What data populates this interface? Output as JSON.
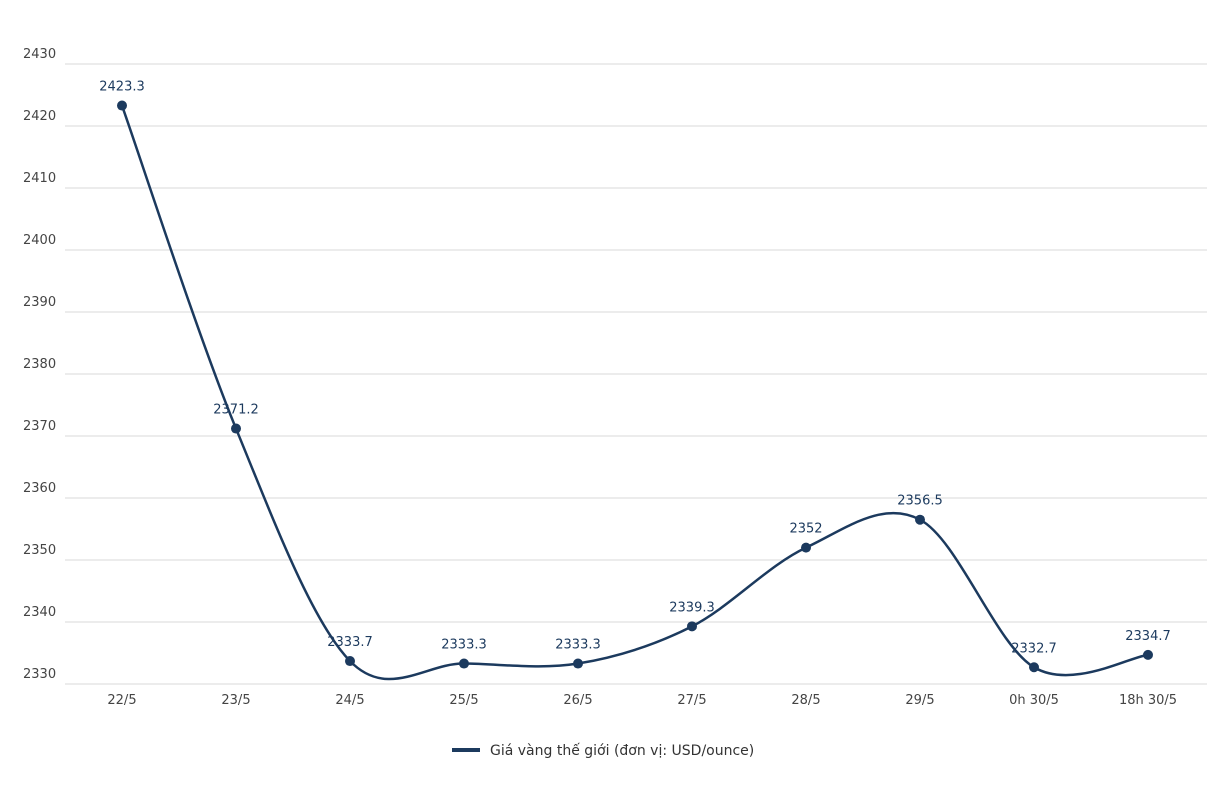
{
  "chart_data": {
    "type": "line",
    "categories": [
      "22/5",
      "23/5",
      "24/5",
      "25/5",
      "26/5",
      "27/5",
      "28/5",
      "29/5",
      "0h 30/5",
      "18h 30/5"
    ],
    "series": [
      {
        "name": "Giá vàng thế giới (đơn vị: USD/ounce)",
        "values": [
          2423.3,
          2371.2,
          2333.7,
          2333.3,
          2333.3,
          2339.3,
          2352,
          2356.5,
          2332.7,
          2334.7
        ],
        "labels": [
          "2423.3",
          "2371.2",
          "2333.7",
          "2333.3",
          "2333.3",
          "2339.3",
          "2352",
          "2356.5",
          "2332.7",
          "2334.7"
        ]
      }
    ],
    "y_ticks": [
      "2330",
      "2340",
      "2350",
      "2360",
      "2370",
      "2380",
      "2390",
      "2400",
      "2410",
      "2420",
      "2430"
    ],
    "ylim": [
      2330,
      2430
    ],
    "grid": true,
    "legend_position": "bottom-center",
    "line_color": "#1c3a5e"
  }
}
